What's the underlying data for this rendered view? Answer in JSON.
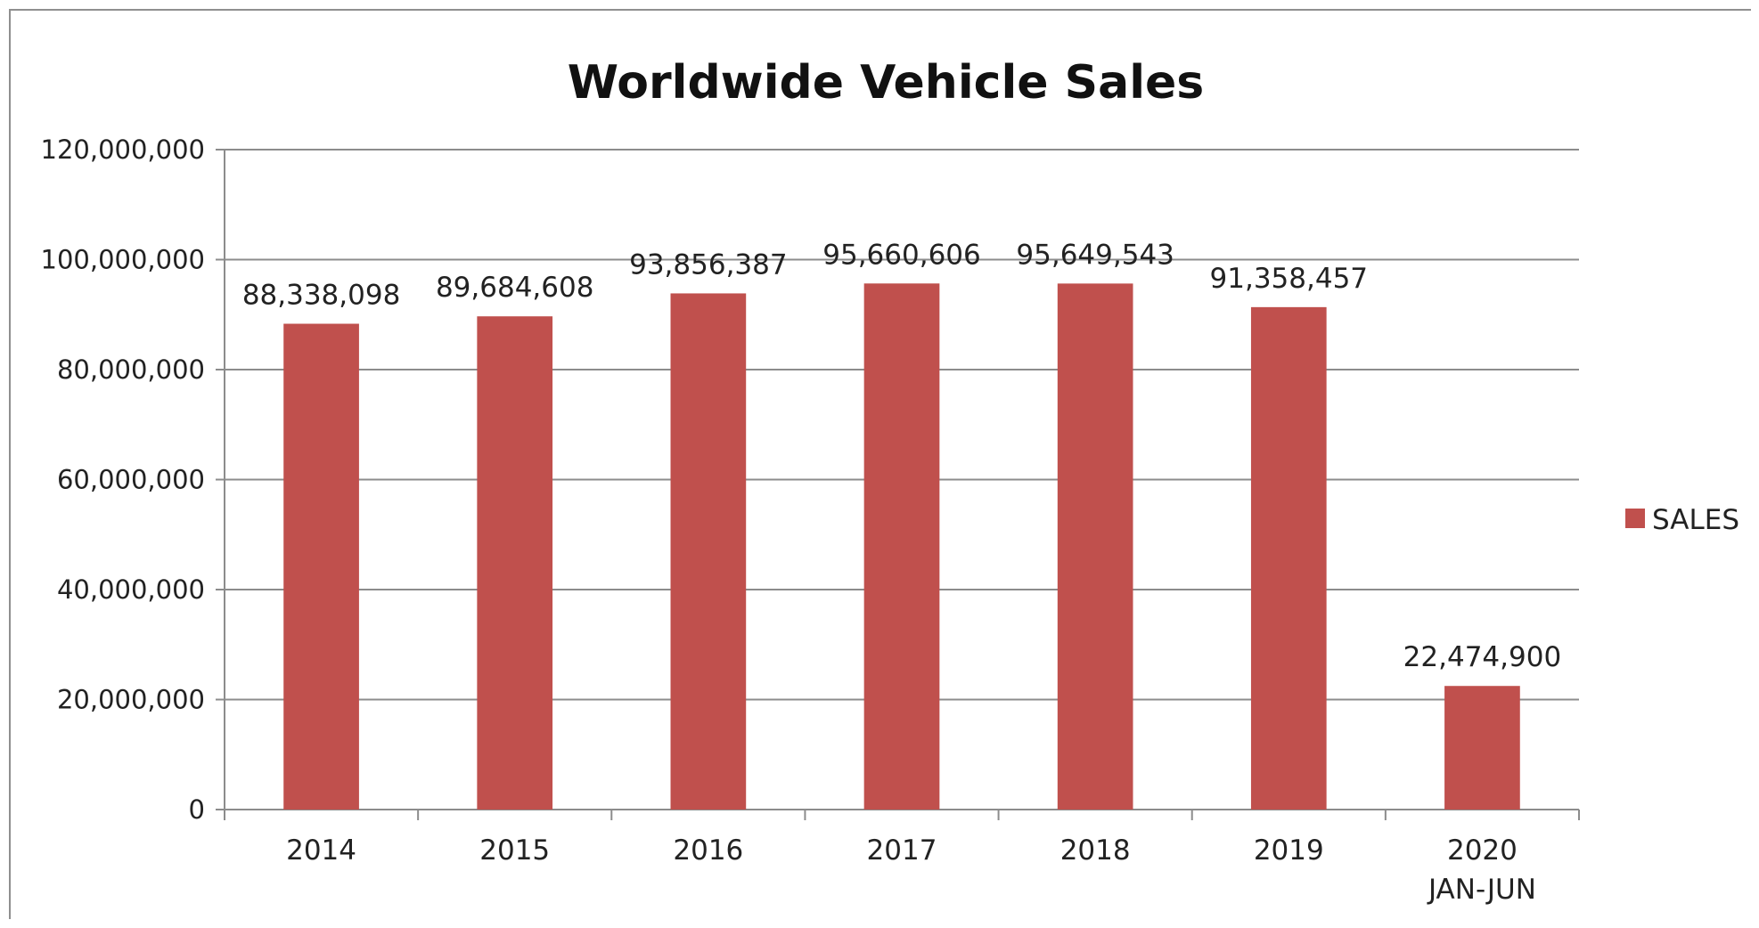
{
  "chart_data": {
    "type": "bar",
    "title": "Worldwide Vehicle Sales",
    "categories": [
      "2014",
      "2015",
      "2016",
      "2017",
      "2018",
      "2019",
      "2020\nJAN-JUN"
    ],
    "series": [
      {
        "name": "SALES",
        "color": "#c0504d",
        "values": [
          88338098,
          89684608,
          93856387,
          95660606,
          95649543,
          91358457,
          22474900
        ]
      }
    ],
    "value_labels": [
      "88,338,098",
      "89,684,608",
      "93,856,387",
      "95,660,606",
      "95,649,543",
      "91,358,457",
      "22,474,900"
    ],
    "y_tick_labels": [
      "0",
      "20,000,000",
      "40,000,000",
      "60,000,000",
      "80,000,000",
      "100,000,000",
      "120,000,000"
    ],
    "ylim": [
      0,
      120000000
    ],
    "grid": true,
    "legend": "right",
    "xlabel": "",
    "ylabel": ""
  }
}
